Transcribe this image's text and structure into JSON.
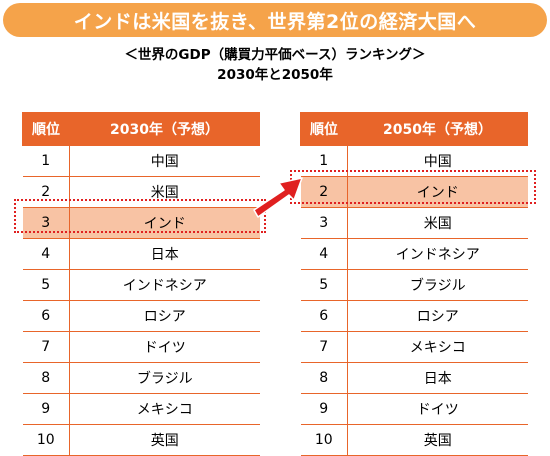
{
  "banner": "インドは米国を抜き、世界第2位の経済大国へ",
  "subtitle1": "＜世界のGDP（購買力平価ベース）ランキング＞",
  "subtitle2": "2030年と2050年",
  "colors": {
    "banner": "#f5a34a",
    "header": "#e8652a",
    "highlight": "#f8c3a4",
    "dotted": "#e02020"
  },
  "table2030": {
    "headers": [
      "順位",
      "2030年（予想）"
    ],
    "rows": [
      [
        "1",
        "中国"
      ],
      [
        "2",
        "米国"
      ],
      [
        "3",
        "インド"
      ],
      [
        "4",
        "日本"
      ],
      [
        "5",
        "インドネシア"
      ],
      [
        "6",
        "ロシア"
      ],
      [
        "7",
        "ドイツ"
      ],
      [
        "8",
        "ブラジル"
      ],
      [
        "9",
        "メキシコ"
      ],
      [
        "10",
        "英国"
      ]
    ]
  },
  "table2050": {
    "headers": [
      "順位",
      "2050年（予想）"
    ],
    "rows": [
      [
        "1",
        "中国"
      ],
      [
        "2",
        "インド"
      ],
      [
        "3",
        "米国"
      ],
      [
        "4",
        "インドネシア"
      ],
      [
        "5",
        "ブラジル"
      ],
      [
        "6",
        "ロシア"
      ],
      [
        "7",
        "メキシコ"
      ],
      [
        "8",
        "日本"
      ],
      [
        "9",
        "ドイツ"
      ],
      [
        "10",
        "英国"
      ]
    ]
  }
}
